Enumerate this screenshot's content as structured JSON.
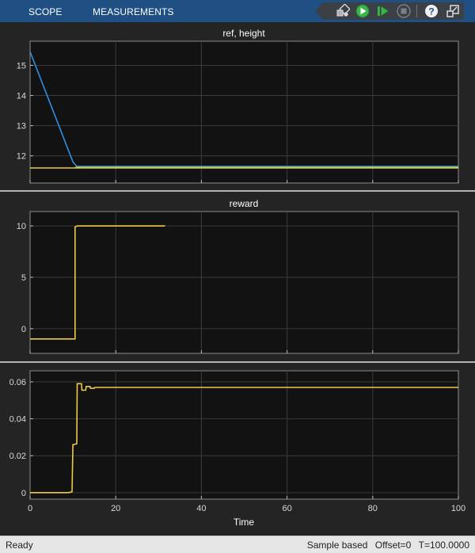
{
  "toolbar": {
    "tabs": [
      {
        "label": "SCOPE"
      },
      {
        "label": "MEASUREMENTS"
      }
    ],
    "buttons": [
      "highlight-simulink-block-icon",
      "run-icon",
      "step-forward-icon",
      "stop-icon",
      "help-icon",
      "undock-icon"
    ]
  },
  "colors": {
    "background": "#242424",
    "axes_background": "#121212",
    "grid": "#3a3a3a",
    "tick_text": "#d9d9d9",
    "series_blue": "#2f8fe0",
    "series_yellow": "#edc948",
    "series_green": "#77c082",
    "toolbar_bg": "#1f4f83"
  },
  "chart_data": [
    {
      "type": "line",
      "title": "ref, height",
      "xlim": [
        0,
        100
      ],
      "ylim": [
        11.1,
        15.8
      ],
      "yticks": [
        12,
        13,
        14,
        15
      ],
      "xticks": [
        0,
        20,
        40,
        60,
        80,
        100
      ],
      "grid": true,
      "series": [
        {
          "color": "#2f8fe0",
          "x": [
            0,
            10,
            10.6,
            11,
            100
          ],
          "y": [
            15.45,
            11.8,
            11.7,
            11.65,
            11.65
          ]
        },
        {
          "color": "#77c082",
          "x": [
            10.6,
            100
          ],
          "y": [
            11.63,
            11.63
          ]
        },
        {
          "color": "#edc948",
          "x": [
            0,
            100
          ],
          "y": [
            11.6,
            11.6
          ]
        }
      ]
    },
    {
      "type": "line",
      "title": "reward",
      "xlim": [
        0,
        100
      ],
      "ylim": [
        -2.4,
        11.4
      ],
      "yticks": [
        0,
        5,
        10
      ],
      "xticks": [
        0,
        20,
        40,
        60,
        80,
        100
      ],
      "grid": true,
      "series": [
        {
          "color": "#edc948",
          "x": [
            0,
            10.5,
            10.5,
            11,
            31.5
          ],
          "y": [
            -1,
            -1,
            9.9,
            10,
            10
          ]
        }
      ]
    },
    {
      "type": "line",
      "title": "",
      "xlabel": "Time",
      "xlim": [
        0,
        100
      ],
      "ylim": [
        -0.0035,
        0.066
      ],
      "yticks": [
        0,
        0.02,
        0.04,
        0.06
      ],
      "xticks": [
        0,
        20,
        40,
        60,
        80,
        100
      ],
      "ytick_labels": [
        "0",
        "0.02",
        "0.04",
        "0.06"
      ],
      "grid": true,
      "series": [
        {
          "color": "#edc948",
          "x": [
            0,
            9,
            9.8,
            10,
            10.1,
            10.9,
            11,
            11.05,
            12,
            12.1,
            13,
            13.1,
            14,
            14.1,
            15,
            15.1,
            100
          ],
          "y": [
            0,
            0,
            0.0005,
            0.026,
            0.026,
            0.0265,
            0.059,
            0.059,
            0.059,
            0.0555,
            0.0555,
            0.0575,
            0.0575,
            0.0565,
            0.0565,
            0.057,
            0.057
          ]
        }
      ]
    }
  ],
  "status": {
    "left": "Ready",
    "sample": "Sample based",
    "offset": "Offset=0",
    "time": "T=100.0000"
  }
}
